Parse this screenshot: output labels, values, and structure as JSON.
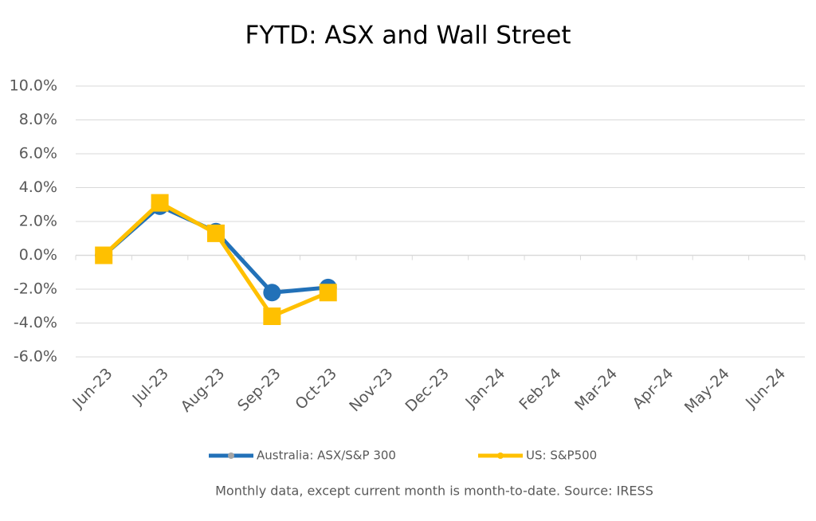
{
  "chart_data": {
    "type": "line",
    "title": "FYTD: ASX and Wall Street",
    "categories": [
      "Jun-23",
      "Jul-23",
      "Aug-23",
      "Sep-23",
      "Oct-23",
      "Nov-23",
      "Dec-23",
      "Jan-24",
      "Feb-24",
      "Mar-24",
      "Apr-24",
      "May-24",
      "Jun-24"
    ],
    "series": [
      {
        "name": "Australia: ASX/S&P 300",
        "color": "#2271b8",
        "marker": "circle",
        "values": [
          0,
          2.9,
          1.4,
          -2.2,
          -1.9,
          null,
          null,
          null,
          null,
          null,
          null,
          null,
          null
        ]
      },
      {
        "name": "US: S&P500",
        "color": "#ffc000",
        "marker": "square",
        "values": [
          0,
          3.1,
          1.3,
          -3.6,
          -2.2,
          null,
          null,
          null,
          null,
          null,
          null,
          null,
          null
        ]
      }
    ],
    "ylim": [
      -6,
      10
    ],
    "yticks": [
      {
        "value": -6,
        "label": "-6.0%"
      },
      {
        "value": -4,
        "label": "-4.0%"
      },
      {
        "value": -2,
        "label": "-2.0%"
      },
      {
        "value": 0,
        "label": "0.0%"
      },
      {
        "value": 2,
        "label": "2.0%"
      },
      {
        "value": 4,
        "label": "4.0%"
      },
      {
        "value": 6,
        "label": "6.0%"
      },
      {
        "value": 8,
        "label": "8.0%"
      },
      {
        "value": 10,
        "label": "10.0%"
      }
    ],
    "grid": true,
    "legend": "bottom",
    "note": "Monthly data, except current month is month-to-date.  Source: IRESS"
  }
}
